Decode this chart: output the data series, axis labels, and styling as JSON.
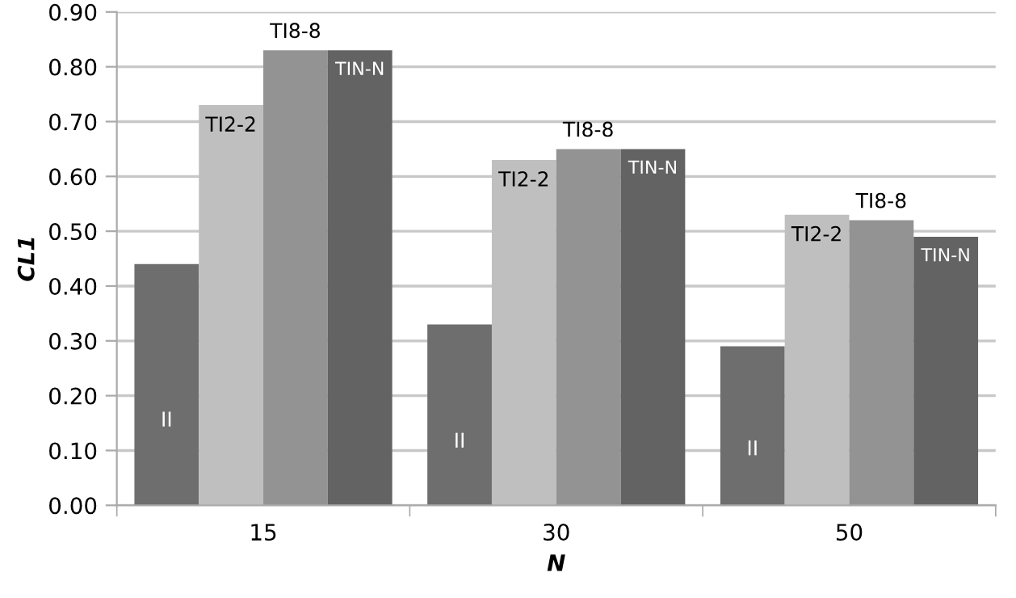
{
  "chart_data": {
    "type": "bar",
    "xlabel": "N",
    "ylabel": "CL1",
    "categories": [
      "15",
      "30",
      "50"
    ],
    "series": [
      {
        "name": "II",
        "color": "#6e6e6e",
        "values": [
          0.44,
          0.33,
          0.29
        ]
      },
      {
        "name": "TI2-2",
        "color": "#bfbfbf",
        "values": [
          0.73,
          0.63,
          0.53
        ]
      },
      {
        "name": "TI8-8",
        "color": "#939393",
        "values": [
          0.83,
          0.65,
          0.52
        ]
      },
      {
        "name": "TIN-N",
        "color": "#636363",
        "values": [
          0.83,
          0.65,
          0.49
        ]
      }
    ],
    "ylim": [
      0,
      0.9
    ],
    "yticks": [
      {
        "value": 0,
        "label": "0.00"
      },
      {
        "value": 0.1,
        "label": "0.10"
      },
      {
        "value": 0.2,
        "label": "0.20"
      },
      {
        "value": 0.3,
        "label": "0.30"
      },
      {
        "value": 0.4,
        "label": "0.40"
      },
      {
        "value": 0.5,
        "label": "0.50"
      },
      {
        "value": 0.6,
        "label": "0.60"
      },
      {
        "value": 0.7,
        "label": "0.70"
      },
      {
        "value": 0.8,
        "label": "0.80"
      },
      {
        "value": 0.9,
        "label": "0.90"
      }
    ],
    "grid": "y",
    "legend": false
  }
}
